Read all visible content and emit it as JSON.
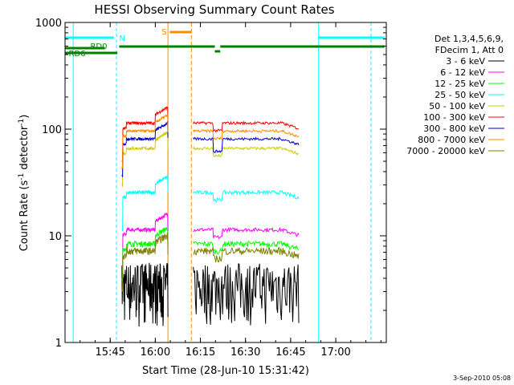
{
  "chart_data": {
    "type": "line",
    "title": "HESSI Observing Summary Count Rates",
    "xlabel": "Start Time (28-Jun-10 15:31:42)",
    "ylabel_main": "Count Rate (s",
    "ylabel_sup1": "-1",
    "ylabel_mid": " detector",
    "ylabel_sup2": "-1",
    "ylabel_end": ")",
    "yscale": "log",
    "ylim": [
      1,
      1000
    ],
    "xlim": [
      15.5,
      17.28
    ],
    "x_ticks": [
      15.75,
      16.0,
      16.25,
      16.5,
      16.75,
      17.0
    ],
    "x_tick_labels": [
      "15:45",
      "16:00",
      "16:15",
      "16:30",
      "16:45",
      "17:00"
    ],
    "y_ticks": [
      1,
      10,
      100,
      1000
    ],
    "y_tick_labels": [
      "1",
      "10",
      "100",
      "1000"
    ],
    "stamp": "3-Sep-2010 05:08",
    "legend_header": [
      "Det 1,3,4,5,6,9,",
      "FDecim 1, Att 0"
    ],
    "series": [
      {
        "name": "3 - 6 keV",
        "color": "#000000"
      },
      {
        "name": "6 - 12 keV",
        "color": "#ff00ff"
      },
      {
        "name": "12 - 25 keV",
        "color": "#00ff00"
      },
      {
        "name": "25 - 50 keV",
        "color": "#00ffff"
      },
      {
        "name": "50 - 100 keV",
        "color": "#cccc00"
      },
      {
        "name": "100 - 300 keV",
        "color": "#ff0000"
      },
      {
        "name": "300 - 800 keV",
        "color": "#0000cc"
      },
      {
        "name": "800 - 7000 keV",
        "color": "#ff8c00"
      },
      {
        "name": "7000 - 20000 keV",
        "color": "#808000"
      }
    ],
    "segments": [
      {
        "times": [
          15.81,
          15.93,
          16.0,
          16.06
        ],
        "levels": [
          4,
          10,
          12,
          16
        ]
      },
      {
        "times": [
          16.22,
          16.41,
          16.43,
          16.48,
          16.79
        ],
        "levels": [
          3.5,
          3.5,
          3.2,
          3.6,
          3.5
        ]
      }
    ],
    "flags": {
      "saa_label": "S",
      "night_label": "N",
      "rd0_label": "RD0",
      "rd6_label": "RD6",
      "saa_color": "#ff8c00",
      "night_color": "#00ffff",
      "decim_color": "#008000"
    }
  }
}
